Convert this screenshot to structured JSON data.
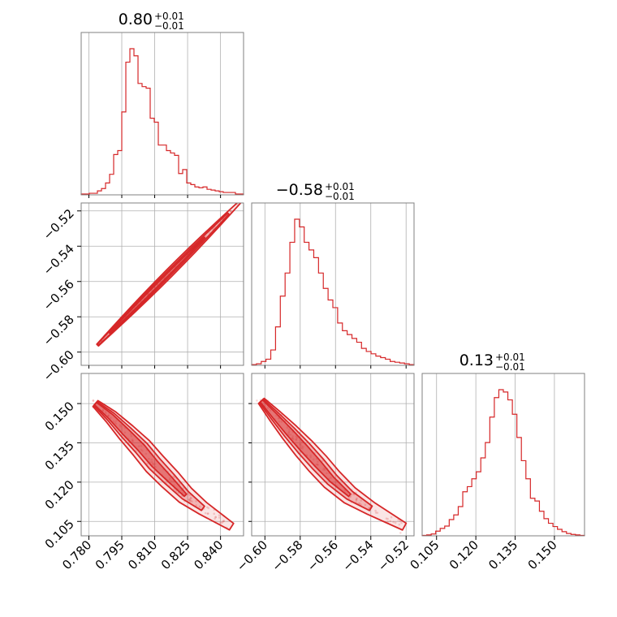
{
  "colors": {
    "accent": "#d62728",
    "grid": "#b0b0b0",
    "frame": "#808080"
  },
  "chart_data": {
    "type": "corner",
    "title": "",
    "parameters": [
      {
        "median": "0.80",
        "plus": "+0.01",
        "minus": "−0.01",
        "range": [
          0.7765,
          0.8505
        ],
        "ticks": [
          0.78,
          0.795,
          0.81,
          0.825,
          0.84
        ],
        "tick_labels": [
          "0.780",
          "0.795",
          "0.810",
          "0.825",
          "0.840"
        ],
        "hist_counts": [
          1,
          1,
          2,
          2,
          5,
          8,
          15,
          26,
          51,
          56,
          105,
          168,
          185,
          176,
          141,
          137,
          135,
          97,
          92,
          63,
          63,
          56,
          53,
          50,
          27,
          32,
          15,
          13,
          10,
          9,
          10,
          7,
          6,
          5,
          4,
          3,
          3,
          3,
          1,
          1
        ]
      },
      {
        "median": "−0.58",
        "plus": "+0.01",
        "minus": "−0.01",
        "range": [
          -0.6075,
          -0.5155
        ],
        "ticks": [
          -0.6,
          -0.58,
          -0.56,
          -0.54,
          -0.52
        ],
        "tick_labels": [
          "−0.60",
          "−0.58",
          "−0.56",
          "−0.54",
          "−0.52"
        ],
        "hist_counts": [
          1,
          2,
          5,
          8,
          20,
          50,
          90,
          120,
          160,
          190,
          180,
          160,
          150,
          140,
          120,
          100,
          85,
          75,
          55,
          45,
          40,
          35,
          30,
          22,
          18,
          15,
          12,
          10,
          8,
          5,
          4,
          3,
          2,
          1
        ]
      },
      {
        "median": "0.13",
        "plus": "+0.01",
        "minus": "−0.01",
        "range": [
          0.0995,
          0.1615
        ],
        "ticks": [
          0.105,
          0.12,
          0.135,
          0.15
        ],
        "tick_labels": [
          "0.105",
          "0.120",
          "0.135",
          "0.150"
        ],
        "hist_counts": [
          1,
          2,
          4,
          10,
          16,
          21,
          35,
          45,
          63,
          95,
          106,
          123,
          138,
          168,
          201,
          256,
          298,
          315,
          310,
          293,
          262,
          212,
          162,
          123,
          81,
          75,
          53,
          37,
          27,
          20,
          14,
          9,
          5,
          3,
          2,
          1
        ]
      }
    ],
    "pairs": [
      {
        "x_param": 0,
        "y_param": 1,
        "relation": "linear",
        "x_range": [
          0.784,
          0.849
        ],
        "slope": 1.25,
        "intercept": -1.576,
        "scatter_count": 90
      },
      {
        "x_param": 0,
        "y_param": 2,
        "relation": "curved",
        "x_range": [
          0.783,
          0.845
        ],
        "points": [
          [
            0.783,
            0.15
          ],
          [
            0.79,
            0.145
          ],
          [
            0.797,
            0.139
          ],
          [
            0.804,
            0.133
          ],
          [
            0.81,
            0.127
          ],
          [
            0.817,
            0.121
          ],
          [
            0.824,
            0.115
          ],
          [
            0.832,
            0.11
          ],
          [
            0.845,
            0.103
          ]
        ],
        "scatter_count": 120
      },
      {
        "x_param": 1,
        "y_param": 2,
        "relation": "curved",
        "x_range": [
          -0.602,
          -0.521
        ],
        "points": [
          [
            -0.602,
            0.151
          ],
          [
            -0.594,
            0.145
          ],
          [
            -0.586,
            0.139
          ],
          [
            -0.578,
            0.133
          ],
          [
            -0.57,
            0.127
          ],
          [
            -0.562,
            0.121
          ],
          [
            -0.552,
            0.115
          ],
          [
            -0.54,
            0.11
          ],
          [
            -0.521,
            0.103
          ]
        ],
        "scatter_count": 120
      }
    ],
    "contour_levels": [
      "outer",
      "middle",
      "inner"
    ],
    "grid": true,
    "legend": "none"
  }
}
